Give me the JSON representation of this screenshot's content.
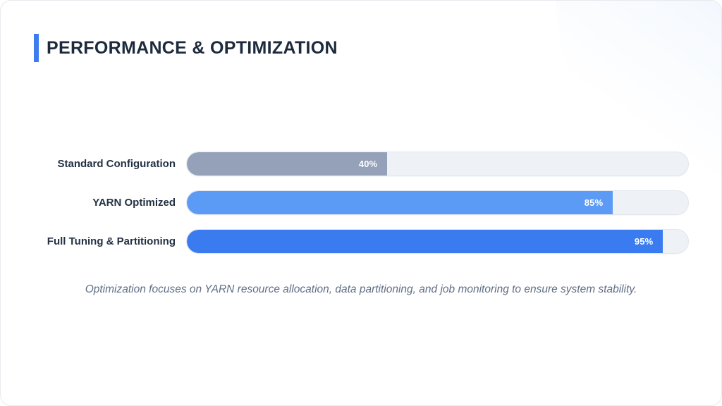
{
  "slide": {
    "title": "PERFORMANCE & OPTIMIZATION",
    "caption": "Optimization focuses on YARN resource allocation, data partitioning, and job monitoring to ensure system stability."
  },
  "colors": {
    "accent": "#3b7cf2",
    "title_text": "#1d2a3d",
    "label_text": "#243143",
    "track": "#eef1f5",
    "track_border": "#e2e6ed",
    "caption_text": "#5f6e85",
    "value_label_text": "#ffffff",
    "deco_circle": "#dde8fa"
  },
  "chart_data": {
    "type": "bar",
    "orientation": "horizontal",
    "categories": [
      "Standard Configuration",
      "YARN Optimized",
      "Full Tuning & Partitioning"
    ],
    "values": [
      40,
      85,
      95
    ],
    "value_labels": [
      "40%",
      "85%",
      "95%"
    ],
    "bar_colors": [
      "#94a1b8",
      "#5c9bf5",
      "#3a7cf0"
    ],
    "xlim": [
      0,
      100
    ],
    "grid": false,
    "legend": false,
    "title": "",
    "xlabel": "",
    "ylabel": ""
  }
}
